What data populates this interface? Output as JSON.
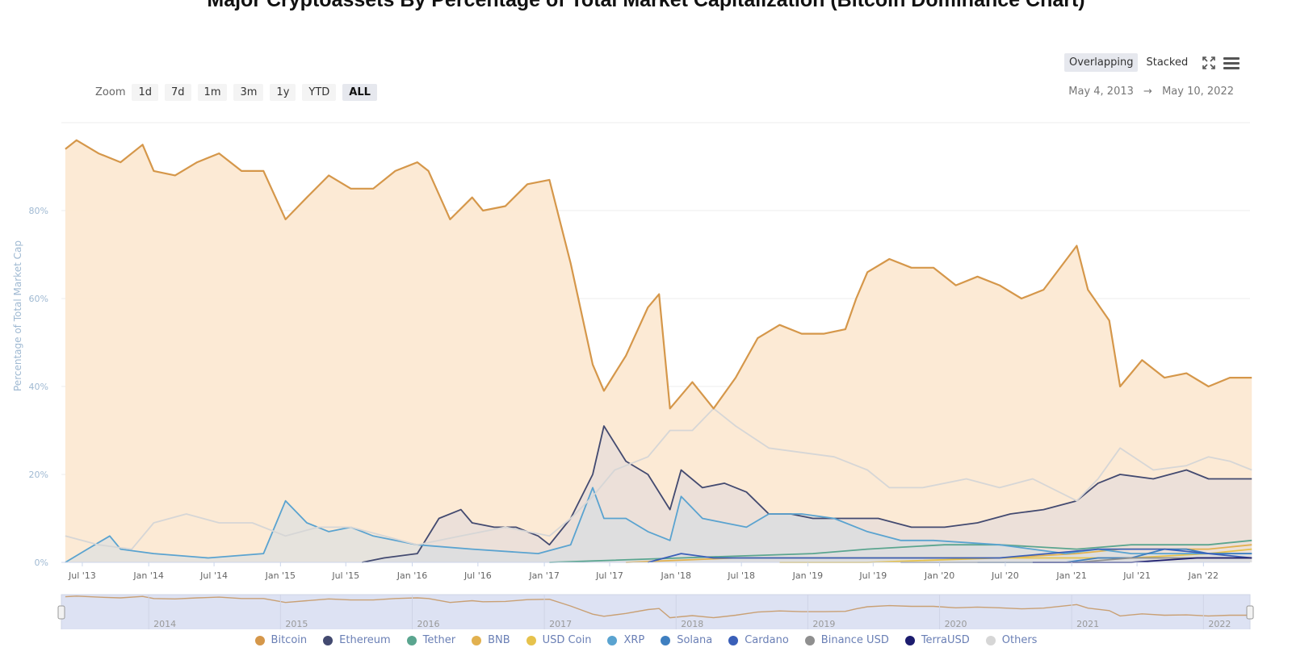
{
  "chart_data": {
    "type": "area",
    "title": "Major Cryptoassets By Percentage of Total Market Capitalization (Bitcoin Dominance Chart)",
    "ylabel": "Percentage of Total Market Cap",
    "xlabel": "",
    "ylim": [
      0,
      100
    ],
    "y_ticks": [
      "0%",
      "20%",
      "40%",
      "60%",
      "80%"
    ],
    "x_ticks": [
      "Jul '13",
      "Jan '14",
      "Jul '14",
      "Jan '15",
      "Jul '15",
      "Jan '16",
      "Jul '16",
      "Jan '17",
      "Jul '17",
      "Jan '18",
      "Jul '18",
      "Jan '19",
      "Jul '19",
      "Jan '20",
      "Jul '20",
      "Jan '21",
      "Jul '21",
      "Jan '22"
    ],
    "navigator_labels": [
      "2014",
      "2015",
      "2016",
      "2017",
      "2018",
      "2019",
      "2020",
      "2021",
      "2022"
    ],
    "date_range": {
      "from": "May 4, 2013",
      "to": "May 10, 2022",
      "arrow": "→"
    },
    "grid": true,
    "legend_position": "bottom",
    "series": [
      {
        "name": "Bitcoin",
        "color": "#d5974a",
        "fill": "#fce9d3",
        "points": [
          [
            "2013-05",
            94
          ],
          [
            "2013-06",
            96
          ],
          [
            "2013-08",
            93
          ],
          [
            "2013-10",
            91
          ],
          [
            "2013-12",
            95
          ],
          [
            "2014-01",
            89
          ],
          [
            "2014-03",
            88
          ],
          [
            "2014-05",
            91
          ],
          [
            "2014-07",
            93
          ],
          [
            "2014-09",
            89
          ],
          [
            "2014-11",
            89
          ],
          [
            "2015-01",
            78
          ],
          [
            "2015-03",
            83
          ],
          [
            "2015-05",
            88
          ],
          [
            "2015-07",
            85
          ],
          [
            "2015-09",
            85
          ],
          [
            "2015-11",
            89
          ],
          [
            "2016-01",
            91
          ],
          [
            "2016-02",
            89
          ],
          [
            "2016-04",
            78
          ],
          [
            "2016-06",
            83
          ],
          [
            "2016-07",
            80
          ],
          [
            "2016-09",
            81
          ],
          [
            "2016-11",
            86
          ],
          [
            "2017-01",
            87
          ],
          [
            "2017-03",
            68
          ],
          [
            "2017-05",
            45
          ],
          [
            "2017-06",
            39
          ],
          [
            "2017-08",
            47
          ],
          [
            "2017-10",
            58
          ],
          [
            "2017-11",
            61
          ],
          [
            "2017-12",
            35
          ],
          [
            "2018-02",
            41
          ],
          [
            "2018-04",
            35
          ],
          [
            "2018-06",
            42
          ],
          [
            "2018-08",
            51
          ],
          [
            "2018-10",
            54
          ],
          [
            "2018-12",
            52
          ],
          [
            "2019-02",
            52
          ],
          [
            "2019-04",
            53
          ],
          [
            "2019-05",
            60
          ],
          [
            "2019-06",
            66
          ],
          [
            "2019-08",
            69
          ],
          [
            "2019-10",
            67
          ],
          [
            "2019-12",
            67
          ],
          [
            "2020-02",
            63
          ],
          [
            "2020-04",
            65
          ],
          [
            "2020-06",
            63
          ],
          [
            "2020-08",
            60
          ],
          [
            "2020-10",
            62
          ],
          [
            "2021-01",
            72
          ],
          [
            "2021-02",
            62
          ],
          [
            "2021-04",
            55
          ],
          [
            "2021-05",
            40
          ],
          [
            "2021-07",
            46
          ],
          [
            "2021-09",
            42
          ],
          [
            "2021-11",
            43
          ],
          [
            "2022-01",
            40
          ],
          [
            "2022-03",
            42
          ],
          [
            "2022-05",
            42
          ]
        ]
      },
      {
        "name": "Ethereum",
        "color": "#434a70",
        "fill": "#ded7dc",
        "points": [
          [
            "2015-08",
            0
          ],
          [
            "2015-10",
            1
          ],
          [
            "2016-01",
            2
          ],
          [
            "2016-03",
            10
          ],
          [
            "2016-05",
            12
          ],
          [
            "2016-06",
            9
          ],
          [
            "2016-08",
            8
          ],
          [
            "2016-10",
            8
          ],
          [
            "2016-12",
            6
          ],
          [
            "2017-01",
            4
          ],
          [
            "2017-03",
            10
          ],
          [
            "2017-05",
            20
          ],
          [
            "2017-06",
            31
          ],
          [
            "2017-08",
            23
          ],
          [
            "2017-10",
            20
          ],
          [
            "2017-12",
            12
          ],
          [
            "2018-01",
            21
          ],
          [
            "2018-03",
            17
          ],
          [
            "2018-05",
            18
          ],
          [
            "2018-07",
            16
          ],
          [
            "2018-09",
            11
          ],
          [
            "2018-11",
            11
          ],
          [
            "2019-01",
            10
          ],
          [
            "2019-04",
            10
          ],
          [
            "2019-07",
            10
          ],
          [
            "2019-10",
            8
          ],
          [
            "2020-01",
            8
          ],
          [
            "2020-04",
            9
          ],
          [
            "2020-07",
            11
          ],
          [
            "2020-10",
            12
          ],
          [
            "2021-01",
            14
          ],
          [
            "2021-03",
            18
          ],
          [
            "2021-05",
            20
          ],
          [
            "2021-08",
            19
          ],
          [
            "2021-11",
            21
          ],
          [
            "2022-01",
            19
          ],
          [
            "2022-03",
            19
          ],
          [
            "2022-05",
            19
          ]
        ]
      },
      {
        "name": "Tether",
        "color": "#5aa58f",
        "points": [
          [
            "2017-01",
            0
          ],
          [
            "2018-01",
            1
          ],
          [
            "2019-01",
            2
          ],
          [
            "2019-06",
            3
          ],
          [
            "2020-01",
            4
          ],
          [
            "2020-06",
            4
          ],
          [
            "2021-01",
            3
          ],
          [
            "2021-06",
            4
          ],
          [
            "2022-01",
            4
          ],
          [
            "2022-05",
            5
          ]
        ]
      },
      {
        "name": "BNB",
        "color": "#e2b14f",
        "points": [
          [
            "2017-08",
            0
          ],
          [
            "2018-06",
            1
          ],
          [
            "2019-06",
            1
          ],
          [
            "2020-06",
            1
          ],
          [
            "2021-01",
            2
          ],
          [
            "2021-05",
            3
          ],
          [
            "2022-01",
            3
          ],
          [
            "2022-05",
            4
          ]
        ]
      },
      {
        "name": "USD Coin",
        "color": "#e6c24c",
        "points": [
          [
            "2018-10",
            0
          ],
          [
            "2019-06",
            0
          ],
          [
            "2020-06",
            1
          ],
          [
            "2021-01",
            1
          ],
          [
            "2021-06",
            1
          ],
          [
            "2022-01",
            2
          ],
          [
            "2022-05",
            3
          ]
        ]
      },
      {
        "name": "XRP",
        "color": "#5aa3d0",
        "fill": "#d4dde4",
        "points": [
          [
            "2013-05",
            0
          ],
          [
            "2013-07",
            3
          ],
          [
            "2013-09",
            6
          ],
          [
            "2013-10",
            3
          ],
          [
            "2014-01",
            2
          ],
          [
            "2014-06",
            1
          ],
          [
            "2014-11",
            2
          ],
          [
            "2015-01",
            14
          ],
          [
            "2015-03",
            9
          ],
          [
            "2015-05",
            7
          ],
          [
            "2015-07",
            8
          ],
          [
            "2015-09",
            6
          ],
          [
            "2015-11",
            5
          ],
          [
            "2016-01",
            4
          ],
          [
            "2016-06",
            3
          ],
          [
            "2016-12",
            2
          ],
          [
            "2017-03",
            4
          ],
          [
            "2017-05",
            17
          ],
          [
            "2017-06",
            10
          ],
          [
            "2017-08",
            10
          ],
          [
            "2017-10",
            7
          ],
          [
            "2017-12",
            5
          ],
          [
            "2018-01",
            15
          ],
          [
            "2018-03",
            10
          ],
          [
            "2018-05",
            9
          ],
          [
            "2018-07",
            8
          ],
          [
            "2018-09",
            11
          ],
          [
            "2018-12",
            11
          ],
          [
            "2019-03",
            10
          ],
          [
            "2019-06",
            7
          ],
          [
            "2019-09",
            5
          ],
          [
            "2019-12",
            5
          ],
          [
            "2020-06",
            4
          ],
          [
            "2020-12",
            2
          ],
          [
            "2021-03",
            3
          ],
          [
            "2021-06",
            2
          ],
          [
            "2022-01",
            2
          ],
          [
            "2022-05",
            2
          ]
        ]
      },
      {
        "name": "Solana",
        "color": "#3f7fc0",
        "points": [
          [
            "2020-04",
            0
          ],
          [
            "2020-12",
            0
          ],
          [
            "2021-03",
            1
          ],
          [
            "2021-06",
            1
          ],
          [
            "2021-09",
            3
          ],
          [
            "2021-11",
            3
          ],
          [
            "2022-01",
            2
          ],
          [
            "2022-05",
            2
          ]
        ]
      },
      {
        "name": "Cardano",
        "color": "#3a5fb8",
        "points": [
          [
            "2017-10",
            0
          ],
          [
            "2018-01",
            2
          ],
          [
            "2018-04",
            1
          ],
          [
            "2018-10",
            1
          ],
          [
            "2019-06",
            1
          ],
          [
            "2020-06",
            1
          ],
          [
            "2021-03",
            3
          ],
          [
            "2021-09",
            3
          ],
          [
            "2022-01",
            2
          ],
          [
            "2022-05",
            1
          ]
        ]
      },
      {
        "name": "Binance USD",
        "color": "#8f8f8f",
        "points": [
          [
            "2019-09",
            0
          ],
          [
            "2020-06",
            0
          ],
          [
            "2021-01",
            0
          ],
          [
            "2021-06",
            1
          ],
          [
            "2022-01",
            1
          ],
          [
            "2022-05",
            1
          ]
        ]
      },
      {
        "name": "TerraUSD",
        "color": "#1c1c6e",
        "points": [
          [
            "2020-09",
            0
          ],
          [
            "2021-06",
            0
          ],
          [
            "2021-12",
            1
          ],
          [
            "2022-03",
            1
          ],
          [
            "2022-05",
            1
          ]
        ]
      },
      {
        "name": "Others",
        "color": "#d6d6d6",
        "points": [
          [
            "2013-05",
            6
          ],
          [
            "2013-08",
            4
          ],
          [
            "2013-11",
            3
          ],
          [
            "2014-01",
            9
          ],
          [
            "2014-04",
            11
          ],
          [
            "2014-07",
            9
          ],
          [
            "2014-10",
            9
          ],
          [
            "2015-01",
            6
          ],
          [
            "2015-04",
            8
          ],
          [
            "2015-07",
            8
          ],
          [
            "2015-10",
            6
          ],
          [
            "2016-01",
            4
          ],
          [
            "2016-05",
            6
          ],
          [
            "2016-09",
            8
          ],
          [
            "2017-01",
            6
          ],
          [
            "2017-03",
            10
          ],
          [
            "2017-05",
            15
          ],
          [
            "2017-07",
            21
          ],
          [
            "2017-10",
            24
          ],
          [
            "2017-12",
            30
          ],
          [
            "2018-02",
            30
          ],
          [
            "2018-04",
            35
          ],
          [
            "2018-06",
            31
          ],
          [
            "2018-09",
            26
          ],
          [
            "2018-12",
            25
          ],
          [
            "2019-03",
            24
          ],
          [
            "2019-06",
            21
          ],
          [
            "2019-08",
            17
          ],
          [
            "2019-11",
            17
          ],
          [
            "2020-03",
            19
          ],
          [
            "2020-06",
            17
          ],
          [
            "2020-09",
            19
          ],
          [
            "2021-01",
            14
          ],
          [
            "2021-03",
            19
          ],
          [
            "2021-05",
            26
          ],
          [
            "2021-08",
            21
          ],
          [
            "2021-11",
            22
          ],
          [
            "2022-01",
            24
          ],
          [
            "2022-03",
            23
          ],
          [
            "2022-05",
            21
          ]
        ]
      }
    ]
  },
  "toolbar": {
    "zoom_label": "Zoom",
    "zoom_buttons": [
      "1d",
      "7d",
      "1m",
      "3m",
      "1y",
      "YTD",
      "ALL"
    ],
    "zoom_active": "ALL",
    "mode_buttons": [
      "Overlapping",
      "Stacked"
    ],
    "mode_active": "Overlapping"
  },
  "icons": {
    "fullscreen": "fullscreen-icon",
    "menu": "hamburger-menu-icon"
  },
  "colors": {
    "axis_label": "#9fb9d2",
    "tick": "#777777",
    "grid": "#ececec",
    "navigator_bg": "#dde2f3"
  }
}
